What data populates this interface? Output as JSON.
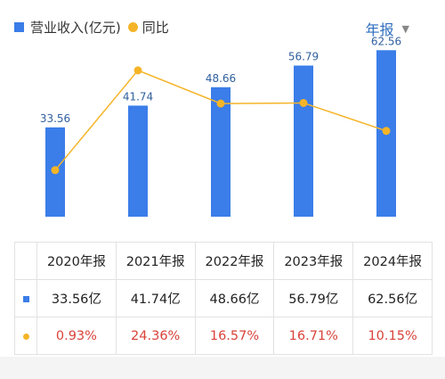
{
  "legend": {
    "revenue_label": "营业收入(亿元)",
    "yoy_label": "同比"
  },
  "period_selector": {
    "label": "年报"
  },
  "colors": {
    "bar": "#3b7de9",
    "line": "#f5b428",
    "negative_text": "#d9433a",
    "label_text": "#2f5f9e"
  },
  "chart_data": {
    "type": "bar",
    "categories": [
      "2020年报",
      "2021年报",
      "2022年报",
      "2023年报",
      "2024年报"
    ],
    "series": [
      {
        "name": "营业收入(亿元)",
        "type": "bar",
        "values": [
          33.56,
          41.74,
          48.66,
          56.79,
          62.56
        ],
        "labels": [
          "33.56",
          "41.74",
          "48.66",
          "56.79",
          "62.56"
        ]
      },
      {
        "name": "同比",
        "type": "line",
        "values": [
          0.93,
          24.36,
          16.57,
          16.71,
          10.15
        ]
      }
    ],
    "ylim_bar": [
      0,
      64
    ],
    "ylim_line": [
      -10,
      30
    ],
    "legend_position": "top-left"
  },
  "table": {
    "headers": [
      "2020年报",
      "2021年报",
      "2022年报",
      "2023年报",
      "2024年报"
    ],
    "revenue": [
      "33.56亿",
      "41.74亿",
      "48.66亿",
      "56.79亿",
      "62.56亿"
    ],
    "yoy": [
      "0.93%",
      "24.36%",
      "16.57%",
      "16.71%",
      "10.15%"
    ]
  }
}
